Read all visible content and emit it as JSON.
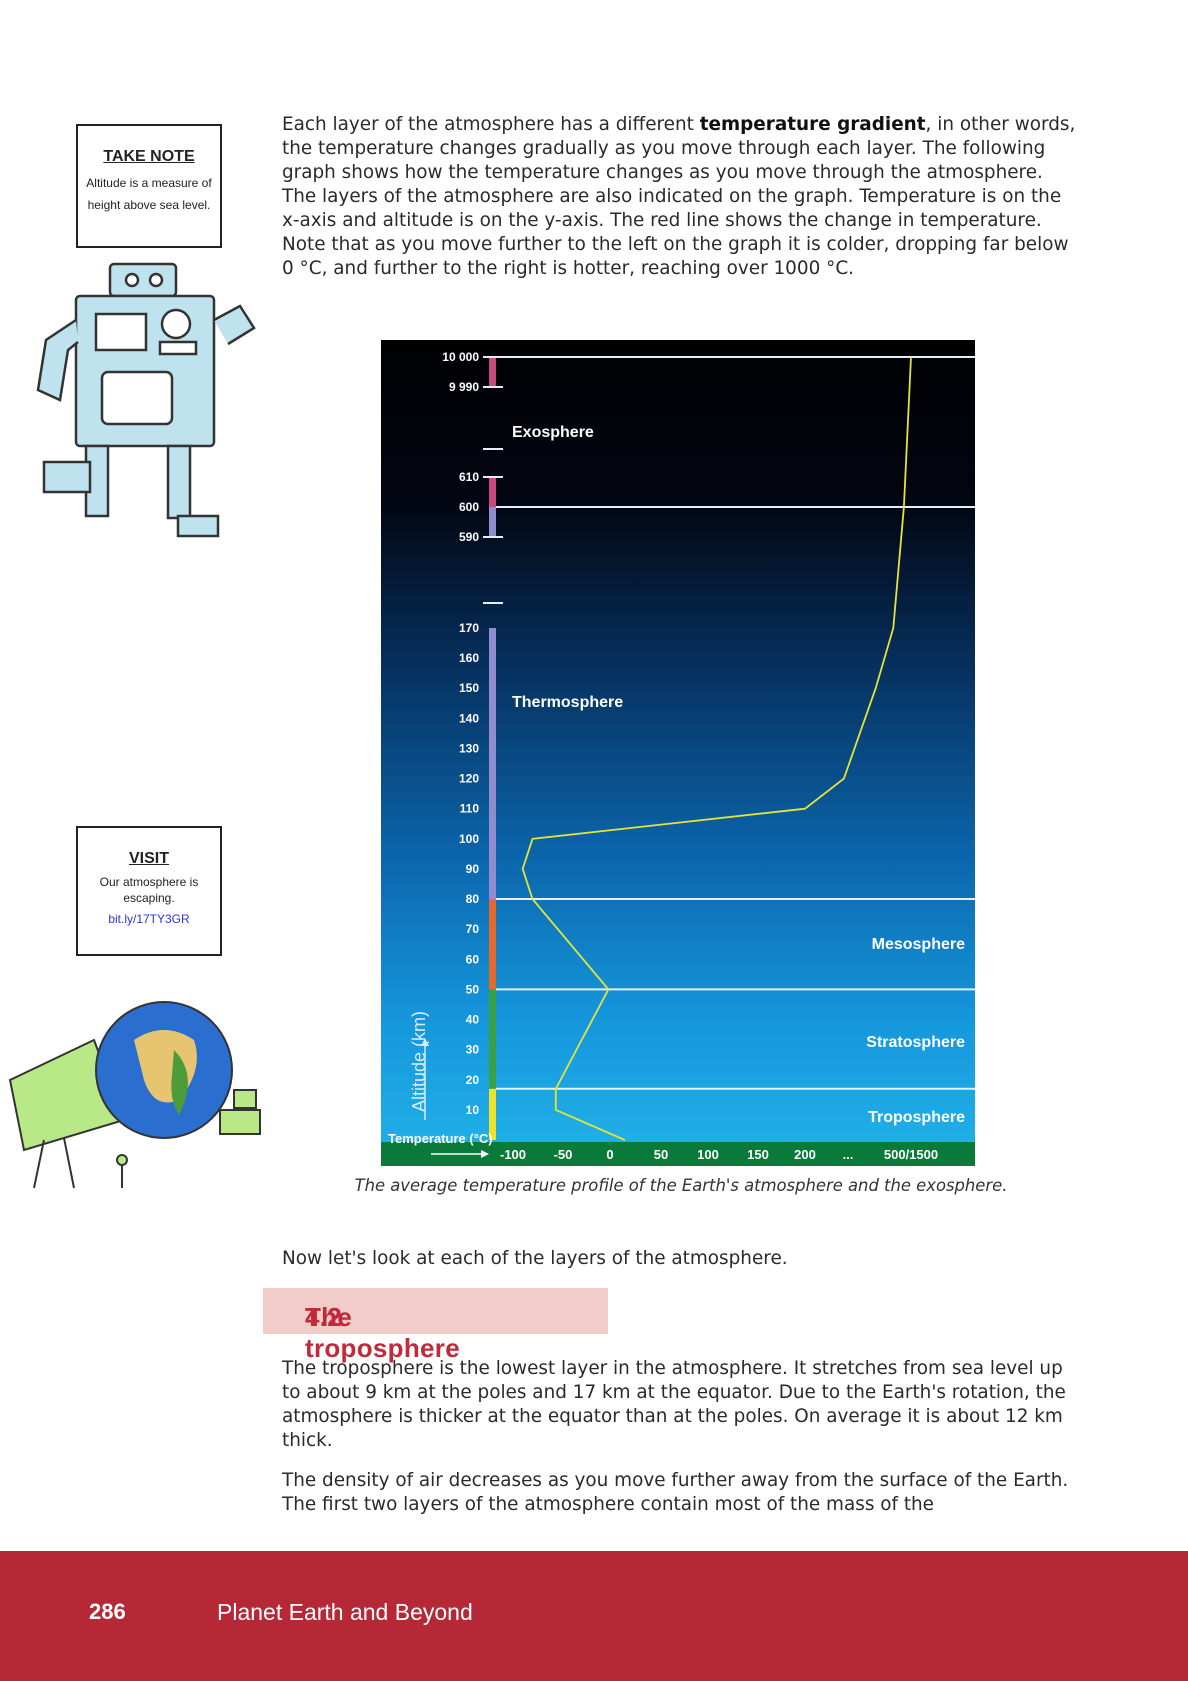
{
  "intro": {
    "before_bold": "Each layer of the atmosphere has a different ",
    "bold": "temperature gradient",
    "after_bold": ", in other words, the temperature changes gradually as you move through each layer.  The following graph shows how the temperature changes as you move through the atmosphere.  The layers of the atmosphere are also indicated on the graph.  Temperature is on the x-axis and altitude is on the y-axis.  The red line shows the change in temperature.  Note that as you move further to the left on the graph it is colder, dropping far below 0 °C, and further to the right is hotter, reaching over 1000 °C."
  },
  "take_note": {
    "title": "TAKE NOTE",
    "text": "Altitude is a measure of height above sea level."
  },
  "visit": {
    "title": "VISIT",
    "text": "Our atmosphere is escaping.",
    "link": "bit.ly/17TY3GR"
  },
  "chart_data": {
    "type": "line",
    "ylabel": "Altitude (km)",
    "xlabel": "Temperature (°C)",
    "y_ticks": [
      "10",
      "20",
      "30",
      "40",
      "50",
      "60",
      "70",
      "80",
      "90",
      "100",
      "110",
      "120",
      "130",
      "140",
      "150",
      "160",
      "170",
      "590",
      "600",
      "610",
      "9 990",
      "10 000"
    ],
    "x_ticks": [
      "-100",
      "-50",
      "0",
      "50",
      "100",
      "150",
      "200",
      "...",
      "500/1500"
    ],
    "layers": [
      {
        "name": "Troposphere",
        "from_km": 0,
        "to_km": 17
      },
      {
        "name": "Stratosphere",
        "from_km": 17,
        "to_km": 50
      },
      {
        "name": "Mesosphere",
        "from_km": 50,
        "to_km": 80
      },
      {
        "name": "Thermosphere",
        "from_km": 80,
        "to_km": 600
      },
      {
        "name": "Exosphere",
        "from_km": 600,
        "to_km": 10000
      }
    ],
    "layer_boundaries_km": [
      17,
      50,
      80,
      600,
      10000
    ],
    "series": [
      {
        "points": [
          [
            15,
            0
          ],
          [
            -56,
            10
          ],
          [
            -56,
            17
          ],
          [
            -2,
            50
          ],
          [
            -80,
            80
          ],
          [
            -90,
            90
          ],
          [
            -80,
            100
          ],
          [
            200,
            110
          ],
          [
            310,
            120
          ],
          [
            400,
            150
          ],
          [
            450,
            170
          ],
          [
            480,
            600
          ],
          [
            500,
            10000
          ]
        ]
      }
    ],
    "colors": {
      "temperature_line": "#e3e33a",
      "sky_top": "#010103",
      "sky_bottom": "#22b3ea",
      "boundary_line": "#e6eef6"
    }
  },
  "caption": "The average temperature profile of the Earth's atmosphere and the exosphere.",
  "transition": "Now let's look at each of the layers of the atmosphere.",
  "section": {
    "number": "4.2",
    "title": "The troposphere"
  },
  "body1": "The troposphere is the lowest layer in the atmosphere.  It stretches from sea level up to about 9 km at the poles and 17 km at the equator.  Due to the Earth's rotation, the atmosphere is thicker at the equator than at the poles.  On average it is about 12 km thick.",
  "body2": "The density of air decreases as you move further away from the surface of the Earth.  The first two layers of the atmosphere contain most of the mass of the",
  "footer": {
    "page_number": "286",
    "book_title": "Planet Earth and Beyond"
  }
}
